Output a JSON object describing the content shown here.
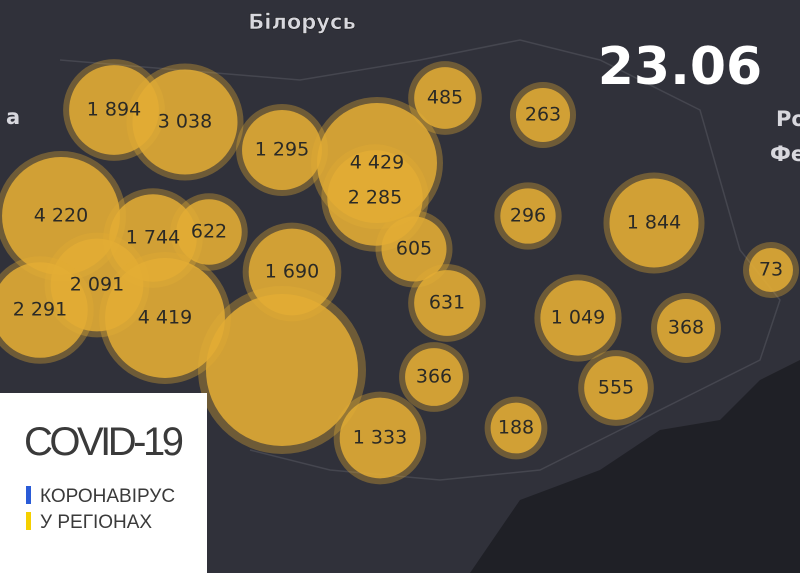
{
  "map_labels": [
    "Білорусь",
    "а",
    "Ро",
    "Фе"
  ],
  "date": "23.06",
  "box": {
    "title": "COVID-19",
    "line1": "КОРОНАВІРУС",
    "line2": "У РЕГІОНАХ"
  },
  "bubbles": [
    {
      "value": 1894,
      "label": "1 894"
    },
    {
      "value": 3038,
      "label": "3 038"
    },
    {
      "value": 1295,
      "label": "1 295"
    },
    {
      "value": 4429,
      "label": "4 429"
    },
    {
      "value": 2285,
      "label": "2 285"
    },
    {
      "value": 485,
      "label": "485"
    },
    {
      "value": 263,
      "label": "263"
    },
    {
      "value": 296,
      "label": "296"
    },
    {
      "value": 1844,
      "label": "1 844"
    },
    {
      "value": 73,
      "label": "73"
    },
    {
      "value": 4220,
      "label": "4 220"
    },
    {
      "value": 1744,
      "label": "1 744"
    },
    {
      "value": 622,
      "label": "622"
    },
    {
      "value": 1690,
      "label": "1 690"
    },
    {
      "value": 605,
      "label": "605"
    },
    {
      "value": 2091,
      "label": "2 091"
    },
    {
      "value": 2291,
      "label": "2 291"
    },
    {
      "value": 4419,
      "label": "4 419"
    },
    {
      "value": 631,
      "label": "631"
    },
    {
      "value": 1049,
      "label": "1 049"
    },
    {
      "value": 368,
      "label": "368"
    },
    {
      "value": 366,
      "label": "366"
    },
    {
      "value": 555,
      "label": "555"
    },
    {
      "value": 1333,
      "label": "1 333"
    },
    {
      "value": 188,
      "label": "188"
    }
  ]
}
